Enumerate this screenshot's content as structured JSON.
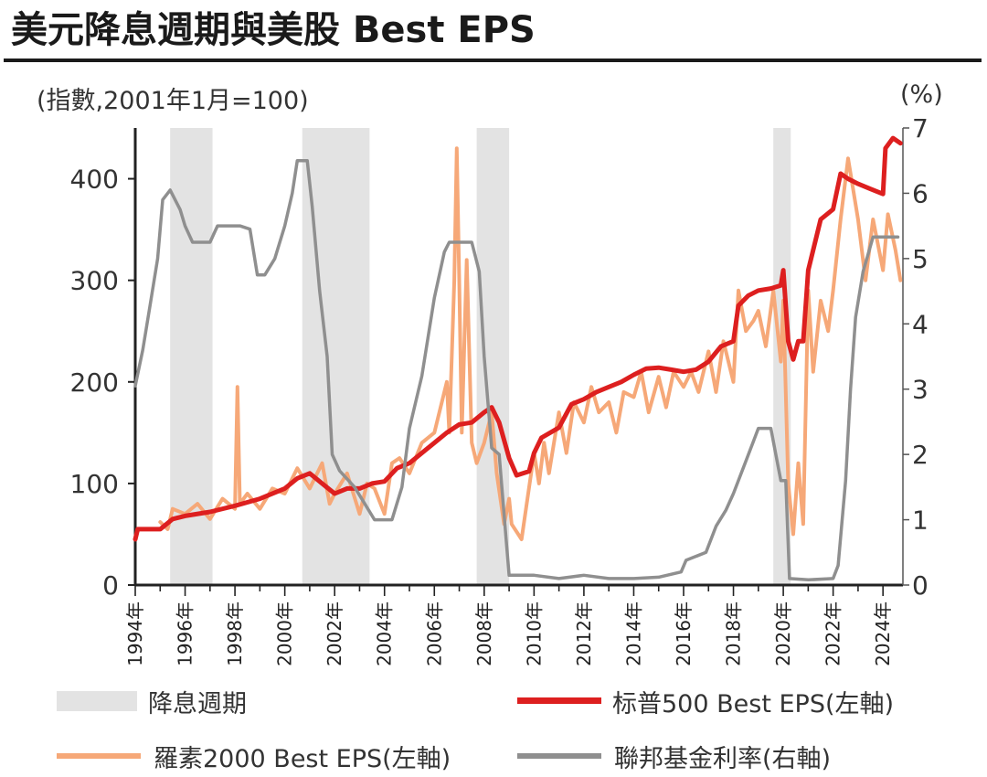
{
  "title": "美元降息週期與美股 Best EPS",
  "unit_left": "(指數,2001年1月=100)",
  "unit_right": "(%)",
  "legend": {
    "easing": "降息週期",
    "sp500": "标普500 Best EPS(左軸)",
    "russell": "羅素2000 Best EPS(左軸)",
    "fed": "聯邦基金利率(右軸)"
  },
  "colors": {
    "sp500": "#dd1f1f",
    "russell": "#f6a878",
    "fed": "#8f8f8f",
    "shade": "#e3e3e3"
  },
  "chart_data": {
    "type": "line",
    "x_range": [
      1994.0,
      2024.8
    ],
    "y_left_range": [
      0,
      450
    ],
    "y_right_range": [
      0,
      7
    ],
    "y_left_ticks": [
      0,
      100,
      200,
      300,
      400
    ],
    "y_right_ticks": [
      0,
      1,
      2,
      3,
      4,
      5,
      6,
      7
    ],
    "x_ticks": [
      {
        "x": 1994,
        "label": "1994年"
      },
      {
        "x": 1996,
        "label": "1996年"
      },
      {
        "x": 1998,
        "label": "1998年"
      },
      {
        "x": 2000,
        "label": "2000年"
      },
      {
        "x": 2002,
        "label": "2002年"
      },
      {
        "x": 2004,
        "label": "2004年"
      },
      {
        "x": 2006,
        "label": "2006年"
      },
      {
        "x": 2008,
        "label": "2008年"
      },
      {
        "x": 2010,
        "label": "2010年"
      },
      {
        "x": 2012,
        "label": "2012年"
      },
      {
        "x": 2014,
        "label": "2014年"
      },
      {
        "x": 2016,
        "label": "2016年"
      },
      {
        "x": 2018,
        "label": "2018年"
      },
      {
        "x": 2020,
        "label": "2020年"
      },
      {
        "x": 2022,
        "label": "2022年"
      },
      {
        "x": 2024,
        "label": "2024年"
      }
    ],
    "easing_periods": [
      [
        1995.4,
        1997.1
      ],
      [
        2000.7,
        2003.4
      ],
      [
        2007.7,
        2009.0
      ],
      [
        2019.6,
        2020.3
      ]
    ],
    "series": [
      {
        "name": "标普500 Best EPS(左軸)",
        "axis": "left",
        "points": [
          [
            1994.0,
            45
          ],
          [
            1994.1,
            55
          ],
          [
            1995.0,
            55
          ],
          [
            1995.5,
            65
          ],
          [
            1996.0,
            68
          ],
          [
            1997.0,
            72
          ],
          [
            1998.0,
            78
          ],
          [
            1999.0,
            85
          ],
          [
            2000.0,
            95
          ],
          [
            2000.5,
            105
          ],
          [
            2001.0,
            110
          ],
          [
            2001.5,
            100
          ],
          [
            2002.0,
            90
          ],
          [
            2002.5,
            95
          ],
          [
            2003.0,
            95
          ],
          [
            2003.5,
            100
          ],
          [
            2004.0,
            102
          ],
          [
            2004.5,
            115
          ],
          [
            2005.0,
            120
          ],
          [
            2005.5,
            130
          ],
          [
            2006.0,
            140
          ],
          [
            2006.5,
            150
          ],
          [
            2007.0,
            158
          ],
          [
            2007.5,
            160
          ],
          [
            2008.0,
            170
          ],
          [
            2008.3,
            175
          ],
          [
            2008.6,
            160
          ],
          [
            2009.0,
            125
          ],
          [
            2009.3,
            108
          ],
          [
            2009.8,
            112
          ],
          [
            2010.0,
            130
          ],
          [
            2010.3,
            145
          ],
          [
            2011.0,
            155
          ],
          [
            2011.5,
            178
          ],
          [
            2012.0,
            183
          ],
          [
            2012.5,
            190
          ],
          [
            2013.0,
            195
          ],
          [
            2013.5,
            200
          ],
          [
            2014.0,
            207
          ],
          [
            2014.5,
            213
          ],
          [
            2015.0,
            214
          ],
          [
            2015.5,
            212
          ],
          [
            2016.0,
            210
          ],
          [
            2016.5,
            212
          ],
          [
            2017.0,
            220
          ],
          [
            2017.5,
            235
          ],
          [
            2018.0,
            240
          ],
          [
            2018.2,
            275
          ],
          [
            2018.6,
            285
          ],
          [
            2019.0,
            290
          ],
          [
            2019.5,
            292
          ],
          [
            2019.9,
            295
          ],
          [
            2020.0,
            310
          ],
          [
            2020.2,
            240
          ],
          [
            2020.4,
            222
          ],
          [
            2020.6,
            240
          ],
          [
            2020.8,
            240
          ],
          [
            2021.0,
            310
          ],
          [
            2021.5,
            360
          ],
          [
            2022.0,
            370
          ],
          [
            2022.3,
            405
          ],
          [
            2022.6,
            400
          ],
          [
            2023.0,
            395
          ],
          [
            2023.5,
            390
          ],
          [
            2024.0,
            385
          ],
          [
            2024.1,
            430
          ],
          [
            2024.4,
            440
          ],
          [
            2024.7,
            435
          ]
        ]
      },
      {
        "name": "羅素2000 Best EPS(左軸)",
        "axis": "left",
        "points": [
          [
            1995.0,
            62
          ],
          [
            1995.3,
            55
          ],
          [
            1995.5,
            75
          ],
          [
            1996.0,
            70
          ],
          [
            1996.5,
            80
          ],
          [
            1997.0,
            65
          ],
          [
            1997.5,
            85
          ],
          [
            1998.0,
            75
          ],
          [
            1998.1,
            195
          ],
          [
            1998.2,
            80
          ],
          [
            1998.5,
            90
          ],
          [
            1999.0,
            75
          ],
          [
            1999.5,
            95
          ],
          [
            2000.0,
            90
          ],
          [
            2000.5,
            115
          ],
          [
            2001.0,
            95
          ],
          [
            2001.5,
            120
          ],
          [
            2001.8,
            80
          ],
          [
            2002.0,
            90
          ],
          [
            2002.5,
            110
          ],
          [
            2003.0,
            70
          ],
          [
            2003.3,
            100
          ],
          [
            2003.6,
            95
          ],
          [
            2004.0,
            70
          ],
          [
            2004.3,
            120
          ],
          [
            2004.6,
            125
          ],
          [
            2005.0,
            110
          ],
          [
            2005.5,
            140
          ],
          [
            2006.0,
            150
          ],
          [
            2006.5,
            200
          ],
          [
            2006.6,
            150
          ],
          [
            2006.8,
            300
          ],
          [
            2006.9,
            430
          ],
          [
            2007.0,
            300
          ],
          [
            2007.1,
            150
          ],
          [
            2007.3,
            320
          ],
          [
            2007.5,
            140
          ],
          [
            2007.7,
            120
          ],
          [
            2008.0,
            140
          ],
          [
            2008.3,
            170
          ],
          [
            2008.5,
            110
          ],
          [
            2008.8,
            60
          ],
          [
            2009.0,
            85
          ],
          [
            2009.1,
            60
          ],
          [
            2009.5,
            45
          ],
          [
            2010.0,
            130
          ],
          [
            2010.2,
            100
          ],
          [
            2010.4,
            140
          ],
          [
            2010.6,
            110
          ],
          [
            2011.0,
            170
          ],
          [
            2011.3,
            130
          ],
          [
            2011.6,
            180
          ],
          [
            2012.0,
            160
          ],
          [
            2012.3,
            195
          ],
          [
            2012.6,
            170
          ],
          [
            2013.0,
            180
          ],
          [
            2013.3,
            150
          ],
          [
            2013.6,
            190
          ],
          [
            2014.0,
            185
          ],
          [
            2014.3,
            210
          ],
          [
            2014.6,
            170
          ],
          [
            2015.0,
            205
          ],
          [
            2015.3,
            175
          ],
          [
            2015.6,
            210
          ],
          [
            2016.0,
            195
          ],
          [
            2016.3,
            210
          ],
          [
            2016.6,
            190
          ],
          [
            2017.0,
            230
          ],
          [
            2017.3,
            190
          ],
          [
            2017.6,
            240
          ],
          [
            2018.0,
            200
          ],
          [
            2018.2,
            290
          ],
          [
            2018.5,
            250
          ],
          [
            2018.8,
            260
          ],
          [
            2019.0,
            270
          ],
          [
            2019.3,
            235
          ],
          [
            2019.6,
            290
          ],
          [
            2019.9,
            220
          ],
          [
            2020.0,
            280
          ],
          [
            2020.2,
            100
          ],
          [
            2020.4,
            50
          ],
          [
            2020.6,
            120
          ],
          [
            2020.8,
            60
          ],
          [
            2021.0,
            290
          ],
          [
            2021.2,
            210
          ],
          [
            2021.5,
            280
          ],
          [
            2021.8,
            250
          ],
          [
            2022.0,
            290
          ],
          [
            2022.3,
            360
          ],
          [
            2022.6,
            420
          ],
          [
            2023.0,
            360
          ],
          [
            2023.3,
            300
          ],
          [
            2023.6,
            360
          ],
          [
            2024.0,
            310
          ],
          [
            2024.2,
            365
          ],
          [
            2024.5,
            330
          ],
          [
            2024.7,
            300
          ]
        ]
      },
      {
        "name": "聯邦基金利率(右軸)",
        "axis": "right",
        "points": [
          [
            1994.0,
            3.05
          ],
          [
            1994.3,
            3.6
          ],
          [
            1994.6,
            4.3
          ],
          [
            1994.9,
            5.0
          ],
          [
            1995.1,
            5.9
          ],
          [
            1995.4,
            6.05
          ],
          [
            1995.8,
            5.75
          ],
          [
            1996.0,
            5.5
          ],
          [
            1996.3,
            5.25
          ],
          [
            1996.6,
            5.25
          ],
          [
            1997.0,
            5.25
          ],
          [
            1997.3,
            5.5
          ],
          [
            1997.8,
            5.5
          ],
          [
            1998.2,
            5.5
          ],
          [
            1998.6,
            5.45
          ],
          [
            1998.9,
            4.75
          ],
          [
            1999.2,
            4.75
          ],
          [
            1999.6,
            5.0
          ],
          [
            2000.0,
            5.5
          ],
          [
            2000.3,
            6.0
          ],
          [
            2000.5,
            6.5
          ],
          [
            2000.9,
            6.5
          ],
          [
            2001.1,
            5.8
          ],
          [
            2001.4,
            4.5
          ],
          [
            2001.7,
            3.5
          ],
          [
            2001.9,
            2.0
          ],
          [
            2002.2,
            1.75
          ],
          [
            2002.8,
            1.5
          ],
          [
            2003.2,
            1.25
          ],
          [
            2003.6,
            1.0
          ],
          [
            2004.3,
            1.0
          ],
          [
            2004.7,
            1.5
          ],
          [
            2005.0,
            2.4
          ],
          [
            2005.5,
            3.2
          ],
          [
            2006.0,
            4.4
          ],
          [
            2006.4,
            5.1
          ],
          [
            2006.6,
            5.25
          ],
          [
            2007.5,
            5.25
          ],
          [
            2007.8,
            4.8
          ],
          [
            2008.0,
            3.5
          ],
          [
            2008.3,
            2.1
          ],
          [
            2008.6,
            2.0
          ],
          [
            2008.9,
            0.6
          ],
          [
            2009.0,
            0.15
          ],
          [
            2010.0,
            0.15
          ],
          [
            2011.0,
            0.1
          ],
          [
            2012.0,
            0.15
          ],
          [
            2013.0,
            0.1
          ],
          [
            2014.0,
            0.1
          ],
          [
            2015.0,
            0.12
          ],
          [
            2015.9,
            0.2
          ],
          [
            2016.1,
            0.38
          ],
          [
            2016.9,
            0.5
          ],
          [
            2017.3,
            0.9
          ],
          [
            2017.7,
            1.15
          ],
          [
            2018.0,
            1.4
          ],
          [
            2018.4,
            1.8
          ],
          [
            2018.8,
            2.2
          ],
          [
            2019.0,
            2.4
          ],
          [
            2019.5,
            2.4
          ],
          [
            2019.7,
            2.0
          ],
          [
            2019.9,
            1.6
          ],
          [
            2020.1,
            1.6
          ],
          [
            2020.25,
            0.1
          ],
          [
            2021.0,
            0.08
          ],
          [
            2022.0,
            0.1
          ],
          [
            2022.2,
            0.3
          ],
          [
            2022.5,
            1.6
          ],
          [
            2022.7,
            3.0
          ],
          [
            2022.9,
            4.1
          ],
          [
            2023.2,
            4.8
          ],
          [
            2023.6,
            5.33
          ],
          [
            2024.6,
            5.33
          ]
        ]
      }
    ]
  }
}
